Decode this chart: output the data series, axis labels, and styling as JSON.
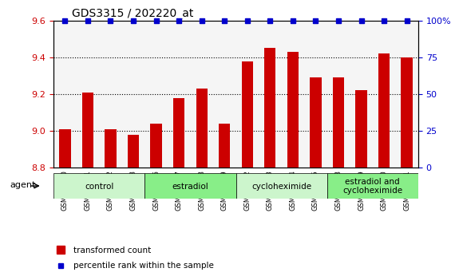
{
  "title": "GDS3315 / 202220_at",
  "samples": [
    "GSM213330",
    "GSM213331",
    "GSM213332",
    "GSM213333",
    "GSM213326",
    "GSM213327",
    "GSM213328",
    "GSM213329",
    "GSM213322",
    "GSM213323",
    "GSM213324",
    "GSM213325",
    "GSM213318",
    "GSM213319",
    "GSM213320",
    "GSM213321"
  ],
  "bar_values": [
    9.01,
    9.21,
    9.01,
    8.98,
    9.04,
    9.18,
    9.23,
    9.04,
    9.38,
    9.45,
    9.43,
    9.29,
    9.29,
    9.22,
    9.42,
    9.4
  ],
  "percentile_values": [
    100,
    100,
    100,
    100,
    100,
    100,
    100,
    100,
    100,
    100,
    100,
    100,
    100,
    100,
    100,
    100
  ],
  "bar_color": "#CC0000",
  "dot_color": "#0000CC",
  "ylim_left": [
    8.8,
    9.6
  ],
  "ylim_right": [
    0,
    100
  ],
  "yticks_left": [
    8.8,
    9.0,
    9.2,
    9.4,
    9.6
  ],
  "yticks_right": [
    0,
    25,
    50,
    75,
    100
  ],
  "groups": [
    {
      "label": "control",
      "start": 0,
      "end": 4,
      "color": "#d4f5d4"
    },
    {
      "label": "estradiol",
      "start": 4,
      "end": 8,
      "color": "#90ee90"
    },
    {
      "label": "cycloheximide",
      "start": 8,
      "end": 12,
      "color": "#d4f5d4"
    },
    {
      "label": "estradiol and\ncycloheximide",
      "start": 12,
      "end": 16,
      "color": "#90ee90"
    }
  ],
  "agent_label": "agent",
  "legend_bar_label": "transformed count",
  "legend_dot_label": "percentile rank within the sample",
  "background_color": "#ffffff",
  "plot_bg_color": "#ffffff",
  "grid_color": "#000000",
  "tick_label_color_left": "#CC0000",
  "tick_label_color_right": "#0000CC"
}
